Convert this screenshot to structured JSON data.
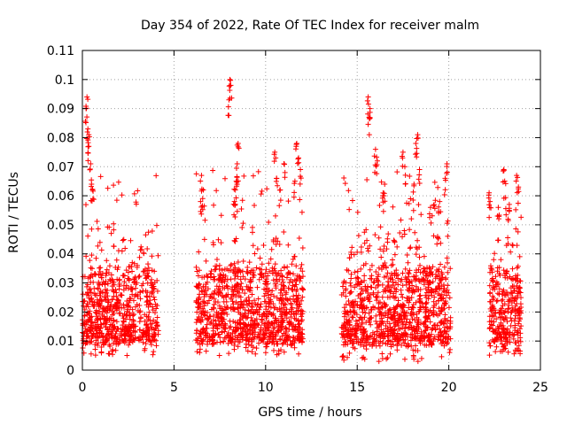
{
  "chart_data": {
    "type": "scatter",
    "title": "Day 354 of 2022, Rate Of TEC Index for receiver malm",
    "xlabel": "GPS time / hours",
    "ylabel": "ROTI / TECUs",
    "xlim": [
      0,
      25
    ],
    "ylim": [
      0,
      0.11
    ],
    "xticks": [
      "0",
      "5",
      "10",
      "15",
      "20",
      "25"
    ],
    "yticks": [
      "0",
      "0.01",
      "0.02",
      "0.03",
      "0.04",
      "0.05",
      "0.06",
      "0.07",
      "0.08",
      "0.09",
      "0.1",
      "0.11"
    ],
    "grid": true,
    "marker": "+",
    "color": "#ff0000",
    "segments": [
      {
        "x_start": 0.0,
        "x_end": 4.15,
        "base_low": 0.005,
        "base_high": 0.045,
        "peak": 0.095
      },
      {
        "x_start": 6.2,
        "x_end": 12.05,
        "base_low": 0.005,
        "base_high": 0.045,
        "peak": 0.1
      },
      {
        "x_start": 14.15,
        "x_end": 20.1,
        "base_low": 0.003,
        "base_high": 0.047,
        "peak": 0.095
      },
      {
        "x_start": 22.2,
        "x_end": 23.95,
        "base_low": 0.005,
        "base_high": 0.045,
        "peak": 0.069
      }
    ],
    "peaks": [
      {
        "x": 0.2,
        "y": 0.09
      },
      {
        "x": 0.25,
        "y": 0.094
      },
      {
        "x": 0.3,
        "y": 0.083
      },
      {
        "x": 0.35,
        "y": 0.081
      },
      {
        "x": 0.45,
        "y": 0.071
      },
      {
        "x": 0.5,
        "y": 0.064
      },
      {
        "x": 0.55,
        "y": 0.062
      },
      {
        "x": 0.35,
        "y": 0.077
      },
      {
        "x": 6.5,
        "y": 0.067
      },
      {
        "x": 6.6,
        "y": 0.062
      },
      {
        "x": 6.45,
        "y": 0.058
      },
      {
        "x": 8.05,
        "y": 0.1
      },
      {
        "x": 8.0,
        "y": 0.093
      },
      {
        "x": 8.1,
        "y": 0.098
      },
      {
        "x": 8.5,
        "y": 0.078
      },
      {
        "x": 8.45,
        "y": 0.071
      },
      {
        "x": 8.4,
        "y": 0.065
      },
      {
        "x": 8.3,
        "y": 0.058
      },
      {
        "x": 8.35,
        "y": 0.062
      },
      {
        "x": 10.5,
        "y": 0.075
      },
      {
        "x": 10.6,
        "y": 0.066
      },
      {
        "x": 10.8,
        "y": 0.062
      },
      {
        "x": 11.0,
        "y": 0.071
      },
      {
        "x": 11.7,
        "y": 0.078
      },
      {
        "x": 11.8,
        "y": 0.073
      },
      {
        "x": 11.9,
        "y": 0.069
      },
      {
        "x": 11.6,
        "y": 0.065
      },
      {
        "x": 15.6,
        "y": 0.094
      },
      {
        "x": 15.7,
        "y": 0.09
      },
      {
        "x": 15.65,
        "y": 0.087
      },
      {
        "x": 16.0,
        "y": 0.076
      },
      {
        "x": 16.1,
        "y": 0.072
      },
      {
        "x": 16.5,
        "y": 0.064
      },
      {
        "x": 16.4,
        "y": 0.06
      },
      {
        "x": 17.5,
        "y": 0.075
      },
      {
        "x": 17.6,
        "y": 0.07
      },
      {
        "x": 18.3,
        "y": 0.081
      },
      {
        "x": 18.2,
        "y": 0.078
      },
      {
        "x": 18.4,
        "y": 0.069
      },
      {
        "x": 18.1,
        "y": 0.064
      },
      {
        "x": 19.9,
        "y": 0.071
      },
      {
        "x": 19.8,
        "y": 0.066
      },
      {
        "x": 19.0,
        "y": 0.056
      },
      {
        "x": 19.5,
        "y": 0.058
      },
      {
        "x": 22.2,
        "y": 0.061
      },
      {
        "x": 22.25,
        "y": 0.058
      },
      {
        "x": 23.0,
        "y": 0.069
      },
      {
        "x": 23.05,
        "y": 0.065
      },
      {
        "x": 23.7,
        "y": 0.067
      },
      {
        "x": 23.8,
        "y": 0.063
      },
      {
        "x": 23.3,
        "y": 0.057
      },
      {
        "x": 22.7,
        "y": 0.056
      }
    ]
  }
}
